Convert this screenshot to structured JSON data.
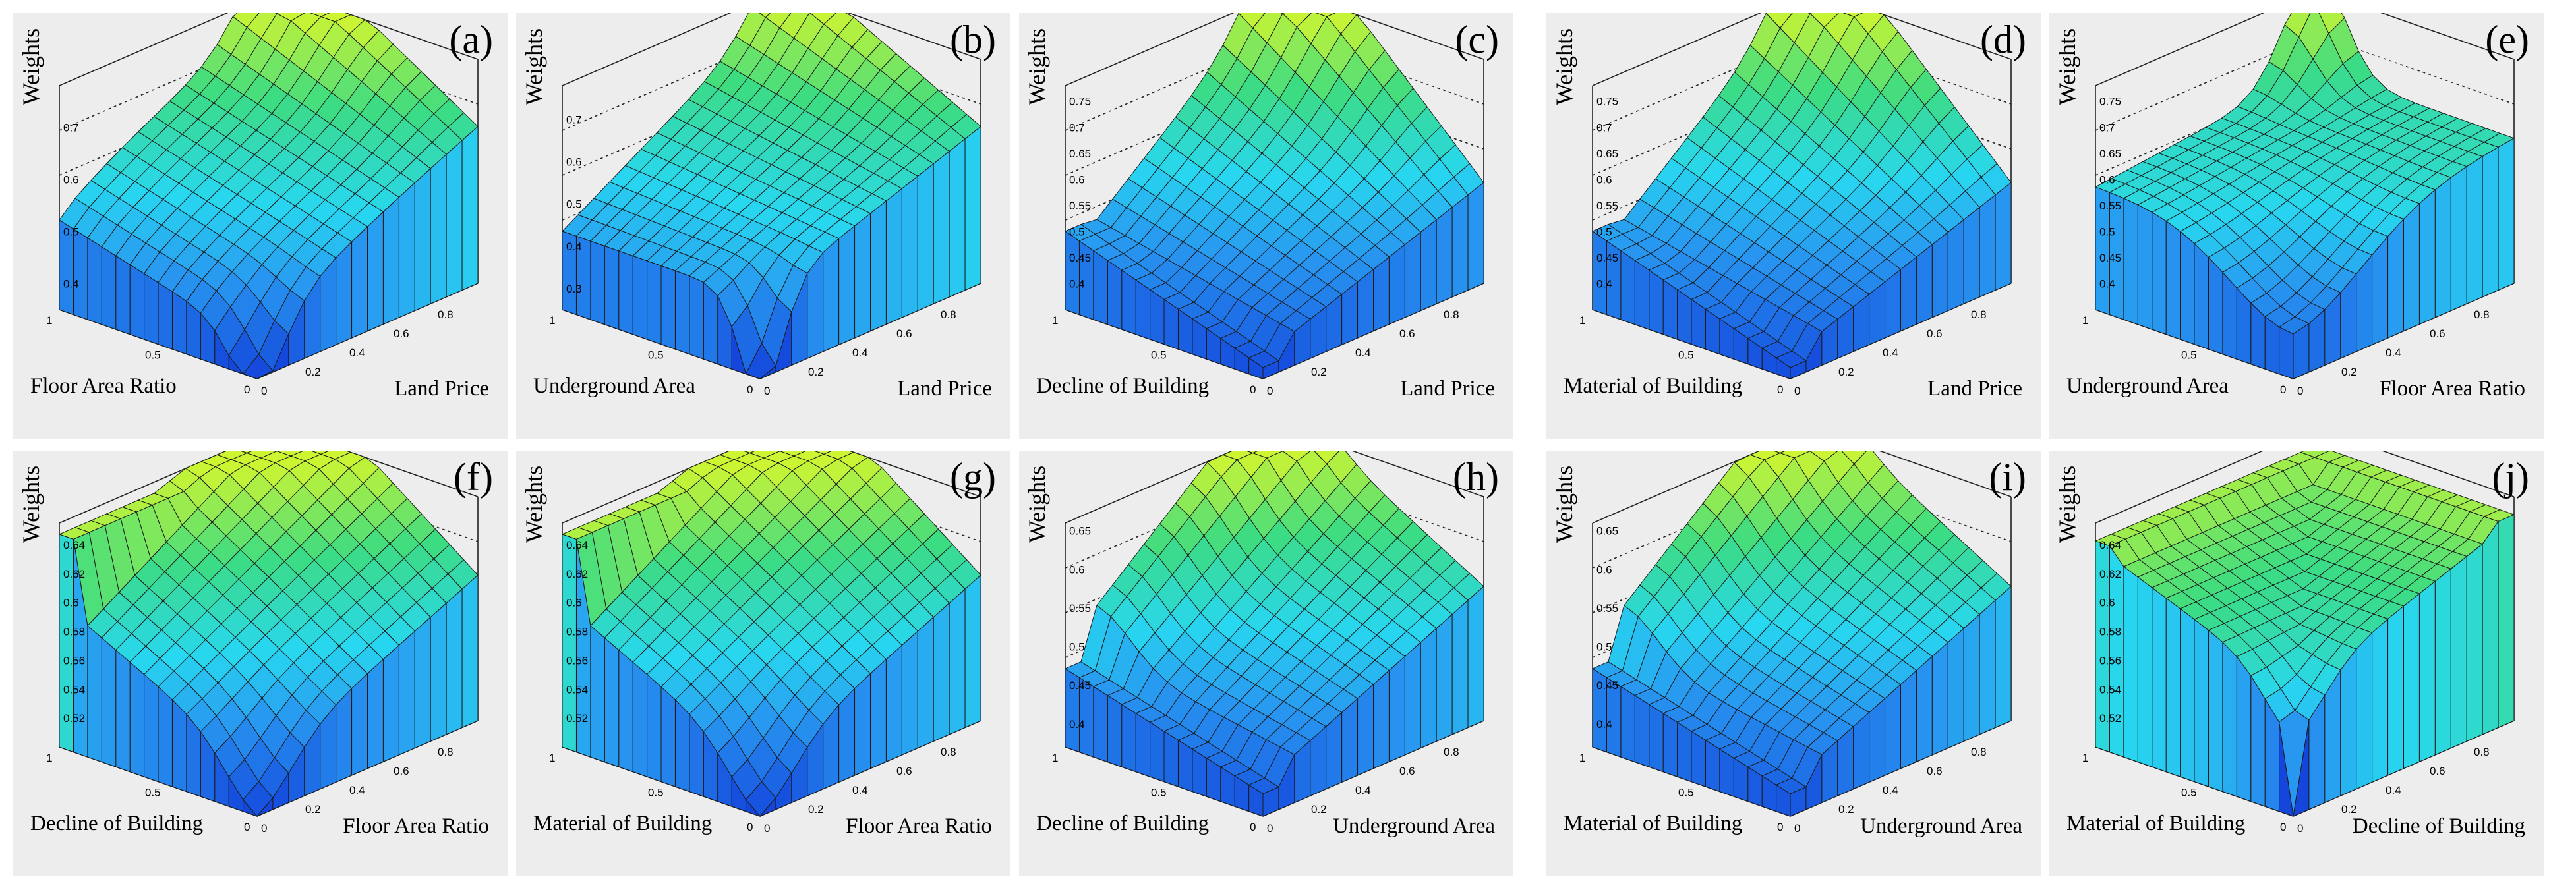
{
  "colors": {
    "panel_bg": "#ededed",
    "low": "#1f55e0",
    "mid": "#28d8ee",
    "high": "#c8f53a",
    "mesh_line": "#1a1a1a"
  },
  "chart_data": [
    {
      "type": "surface3d",
      "panel": "(a)",
      "zlabel": "Weights",
      "xlabel": "Floor Area Ratio",
      "ylabel": "Land Price",
      "xticks": [
        "0",
        "0.5",
        "1"
      ],
      "yticks": [
        "0",
        "0.2",
        "0.4",
        "0.6",
        "0.8"
      ],
      "zticks": [
        "0.4",
        "0.5",
        "0.6",
        "0.7"
      ],
      "zlim": [
        0.35,
        0.78
      ],
      "shape": "a"
    },
    {
      "type": "surface3d",
      "panel": "(b)",
      "zlabel": "Weights",
      "xlabel": "Underground Area",
      "ylabel": "Land Price",
      "xticks": [
        "0",
        "0.5",
        "1"
      ],
      "yticks": [
        "0",
        "0.2",
        "0.4",
        "0.6",
        "0.8"
      ],
      "zticks": [
        "0.3",
        "0.4",
        "0.5",
        "0.6",
        "0.7"
      ],
      "zlim": [
        0.25,
        0.78
      ],
      "shape": "b"
    },
    {
      "type": "surface3d",
      "panel": "(c)",
      "zlabel": "Weights",
      "xlabel": "Decline of Building",
      "ylabel": "Land Price",
      "xticks": [
        "0",
        "0.5",
        "1"
      ],
      "yticks": [
        "0",
        "0.2",
        "0.4",
        "0.6",
        "0.8"
      ],
      "zticks": [
        "0.4",
        "0.45",
        "0.5",
        "0.55",
        "0.6",
        "0.65",
        "0.7",
        "0.75"
      ],
      "zlim": [
        0.35,
        0.78
      ],
      "shape": "c"
    },
    {
      "type": "surface3d",
      "panel": "(d)",
      "zlabel": "Weights",
      "xlabel": "Material of Building",
      "ylabel": "Land Price",
      "xticks": [
        "0",
        "0.5",
        "1"
      ],
      "yticks": [
        "0",
        "0.2",
        "0.4",
        "0.6",
        "0.8"
      ],
      "zticks": [
        "0.4",
        "0.45",
        "0.5",
        "0.55",
        "0.6",
        "0.65",
        "0.7",
        "0.75"
      ],
      "zlim": [
        0.35,
        0.78
      ],
      "shape": "c"
    },
    {
      "type": "surface3d",
      "panel": "(e)",
      "zlabel": "Weights",
      "xlabel": "Underground Area",
      "ylabel": "Floor Area Ratio",
      "xticks": [
        "0",
        "0.5",
        "1"
      ],
      "yticks": [
        "0",
        "0.2",
        "0.4",
        "0.6",
        "0.8"
      ],
      "zticks": [
        "0.4",
        "0.45",
        "0.5",
        "0.55",
        "0.6",
        "0.65",
        "0.7",
        "0.75"
      ],
      "zlim": [
        0.35,
        0.78
      ],
      "shape": "e"
    },
    {
      "type": "surface3d",
      "panel": "(f)",
      "zlabel": "Weights",
      "xlabel": "Decline of Building",
      "ylabel": "Floor Area Ratio",
      "xticks": [
        "0",
        "0.5",
        "1"
      ],
      "yticks": [
        "0",
        "0.2",
        "0.4",
        "0.6",
        "0.8"
      ],
      "zticks": [
        "0.52",
        "0.54",
        "0.56",
        "0.58",
        "0.6",
        "0.62",
        "0.64"
      ],
      "zlim": [
        0.5,
        0.655
      ],
      "shape": "f"
    },
    {
      "type": "surface3d",
      "panel": "(g)",
      "zlabel": "Weights",
      "xlabel": "Material of Building",
      "ylabel": "Floor Area Ratio",
      "xticks": [
        "0",
        "0.5",
        "1"
      ],
      "yticks": [
        "0",
        "0.2",
        "0.4",
        "0.6",
        "0.8"
      ],
      "zticks": [
        "0.52",
        "0.54",
        "0.56",
        "0.58",
        "0.6",
        "0.62",
        "0.64"
      ],
      "zlim": [
        0.5,
        0.655
      ],
      "shape": "f"
    },
    {
      "type": "surface3d",
      "panel": "(h)",
      "zlabel": "Weights",
      "xlabel": "Decline of Building",
      "ylabel": "Underground Area",
      "xticks": [
        "0",
        "0.5",
        "1"
      ],
      "yticks": [
        "0",
        "0.2",
        "0.4",
        "0.6",
        "0.8"
      ],
      "zticks": [
        "0.4",
        "0.45",
        "0.5",
        "0.55",
        "0.6",
        "0.65"
      ],
      "zlim": [
        0.37,
        0.66
      ],
      "shape": "h"
    },
    {
      "type": "surface3d",
      "panel": "(i)",
      "zlabel": "Weights",
      "xlabel": "Material of Building",
      "ylabel": "Underground Area",
      "xticks": [
        "0",
        "0.5",
        "1"
      ],
      "yticks": [
        "0",
        "0.2",
        "0.4",
        "0.6",
        "0.8"
      ],
      "zticks": [
        "0.4",
        "0.45",
        "0.5",
        "0.55",
        "0.6",
        "0.65"
      ],
      "zlim": [
        0.37,
        0.66
      ],
      "shape": "h"
    },
    {
      "type": "surface3d",
      "panel": "(j)",
      "zlabel": "Weights",
      "xlabel": "Material of Building",
      "ylabel": "Decline of Building",
      "xticks": [
        "0",
        "0.5",
        "1"
      ],
      "yticks": [
        "0",
        "0.2",
        "0.4",
        "0.6",
        "0.8"
      ],
      "zticks": [
        "0.52",
        "0.54",
        "0.56",
        "0.58",
        "0.6",
        "0.62",
        "0.64"
      ],
      "zlim": [
        0.5,
        0.655
      ],
      "shape": "j"
    }
  ]
}
